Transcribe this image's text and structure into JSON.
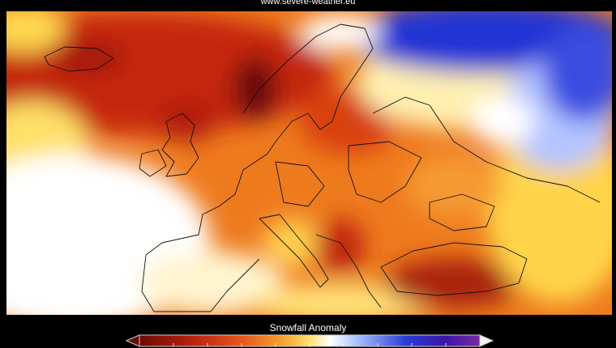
{
  "source": "www.severe-weather.eu",
  "legend": {
    "title": "Snowfall Anomaly"
  }
}
